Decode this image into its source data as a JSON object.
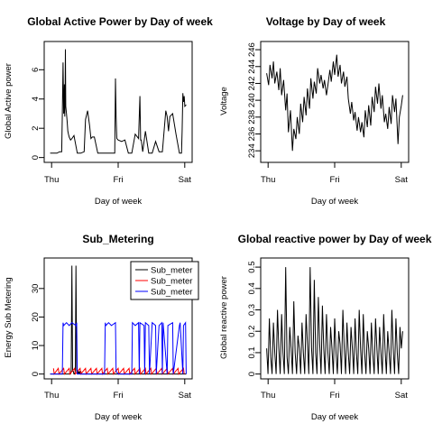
{
  "chart_data": [
    {
      "type": "line",
      "title": "Global Active Power by Day of week",
      "xlabel": "Day of week",
      "ylabel": "Global Active power",
      "x_ticks": [
        "Thu",
        "Fri",
        "Sat"
      ],
      "y_ticks": [
        0,
        2,
        4,
        6
      ],
      "xlim": [
        0,
        2
      ],
      "ylim": [
        0,
        7.6
      ],
      "series": [
        {
          "x": [
            0.0,
            0.1,
            0.14,
            0.17,
            0.18,
            0.19,
            0.2,
            0.205,
            0.21,
            0.215,
            0.22,
            0.225,
            0.23,
            0.24,
            0.25,
            0.26,
            0.27,
            0.28,
            0.3,
            0.32,
            0.35,
            0.4,
            0.45,
            0.5,
            0.52,
            0.55,
            0.58,
            0.6,
            0.62,
            0.65,
            0.7,
            0.8,
            0.9,
            0.95,
            0.96,
            0.97,
            0.98,
            1.0,
            1.05,
            1.1,
            1.15,
            1.2,
            1.25,
            1.3,
            1.32,
            1.33,
            1.34,
            1.36,
            1.4,
            1.45,
            1.5,
            1.55,
            1.6,
            1.65,
            1.7,
            1.72,
            1.74,
            1.76,
            1.8,
            1.85,
            1.9,
            1.93,
            1.94,
            1.95,
            1.96,
            1.97,
            1.98,
            2.0
          ],
          "y": [
            0.3,
            0.3,
            0.4,
            0.4,
            3.0,
            6.5,
            3.0,
            3.2,
            5.0,
            2.8,
            4.2,
            7.4,
            3.5,
            3.0,
            2.5,
            1.8,
            1.6,
            1.4,
            1.2,
            1.3,
            1.5,
            0.3,
            0.3,
            0.4,
            2.6,
            3.2,
            2.2,
            1.3,
            1.4,
            1.4,
            0.3,
            0.3,
            0.3,
            0.3,
            5.4,
            2.8,
            1.3,
            1.2,
            1.1,
            1.2,
            0.3,
            0.3,
            1.6,
            1.3,
            4.2,
            1.2,
            1.2,
            0.4,
            1.8,
            0.3,
            0.3,
            1.1,
            0.4,
            0.4,
            3.2,
            2.8,
            1.8,
            2.8,
            3.0,
            1.6,
            0.3,
            0.3,
            1.8,
            4.4,
            3.8,
            4.2,
            3.5,
            3.6
          ]
        }
      ]
    },
    {
      "type": "line",
      "title": "Voltage by Day of week",
      "xlabel": "Day of week",
      "ylabel": "Voltage",
      "x_ticks": [
        "Thu",
        "Fri",
        "Sat"
      ],
      "y_ticks": [
        234,
        236,
        238,
        240,
        242,
        244,
        246
      ],
      "xlim": [
        0,
        2
      ],
      "ylim": [
        233.2,
        246.4
      ],
      "series": [
        {
          "x": [
            0.0,
            0.03,
            0.05,
            0.08,
            0.1,
            0.12,
            0.15,
            0.18,
            0.2,
            0.22,
            0.25,
            0.28,
            0.3,
            0.32,
            0.35,
            0.38,
            0.4,
            0.43,
            0.45,
            0.48,
            0.5,
            0.53,
            0.55,
            0.58,
            0.6,
            0.63,
            0.65,
            0.68,
            0.7,
            0.73,
            0.75,
            0.78,
            0.8,
            0.83,
            0.85,
            0.88,
            0.9,
            0.93,
            0.95,
            0.98,
            1.0,
            1.03,
            1.05,
            1.08,
            1.1,
            1.13,
            1.15,
            1.18,
            1.2,
            1.23,
            1.25,
            1.28,
            1.3,
            1.33,
            1.35,
            1.38,
            1.4,
            1.43,
            1.45,
            1.48,
            1.5,
            1.53,
            1.55,
            1.58,
            1.6,
            1.63,
            1.65,
            1.68,
            1.7,
            1.73,
            1.75,
            1.78,
            1.8,
            1.83,
            1.85,
            1.88,
            1.9,
            1.93,
            1.95,
            1.98,
            2.0
          ],
          "y": [
            243.2,
            241.8,
            244.2,
            242.6,
            244.6,
            242.0,
            243.4,
            241.2,
            243.8,
            240.6,
            242.4,
            238.8,
            240.8,
            236.2,
            238.8,
            234.0,
            236.6,
            235.4,
            238.0,
            236.0,
            239.6,
            237.4,
            240.4,
            238.2,
            241.4,
            239.0,
            242.6,
            240.2,
            242.2,
            240.8,
            243.8,
            242.0,
            243.0,
            241.4,
            242.4,
            240.6,
            241.8,
            243.6,
            242.2,
            244.6,
            243.0,
            245.4,
            242.8,
            244.2,
            242.0,
            243.4,
            241.6,
            242.8,
            240.2,
            238.4,
            239.8,
            237.6,
            238.6,
            236.4,
            238.0,
            236.2,
            237.4,
            235.6,
            238.8,
            236.8,
            239.4,
            237.0,
            240.4,
            238.6,
            241.6,
            239.6,
            242.0,
            239.0,
            240.6,
            237.4,
            238.4,
            236.6,
            239.2,
            237.2,
            240.6,
            238.6,
            240.2,
            234.8,
            238.0,
            239.4,
            240.6
          ]
        }
      ]
    },
    {
      "type": "line",
      "title": "Sub_Metering",
      "xlabel": "Day of week",
      "ylabel": "Energy Sub Metering",
      "x_ticks": [
        "Thu",
        "Fri",
        "Sat"
      ],
      "y_ticks": [
        0,
        10,
        20,
        30
      ],
      "xlim": [
        0,
        2
      ],
      "ylim": [
        0,
        39
      ],
      "legend": {
        "position": "top-right",
        "entries": [
          "Sub_meter",
          "Sub_meter",
          "Sub_meter"
        ]
      },
      "series": [
        {
          "name": "Sub_meter",
          "color": "#000000",
          "x": [
            0.0,
            0.28,
            0.29,
            0.3,
            0.31,
            0.32,
            0.33,
            0.34,
            0.35,
            0.36,
            0.37,
            0.38,
            0.39,
            0.4,
            0.41,
            0.42,
            0.43,
            0.44,
            0.45,
            0.46,
            2.0
          ],
          "y": [
            0,
            0,
            0,
            0,
            1,
            38,
            1,
            1,
            0,
            0,
            1,
            38,
            1,
            0,
            1,
            0,
            1,
            0,
            1,
            0,
            0
          ]
        },
        {
          "name": "Sub_meter",
          "color": "#ff0000",
          "x": [
            0.05,
            0.06,
            0.12,
            0.13,
            0.2,
            0.21,
            0.28,
            0.29,
            0.36,
            0.37,
            0.44,
            0.45,
            0.52,
            0.53,
            0.6,
            0.61,
            0.68,
            0.69,
            0.76,
            0.77,
            0.84,
            0.85,
            0.92,
            0.93,
            1.0,
            1.01,
            1.08,
            1.09,
            1.16,
            1.17,
            1.24,
            1.25,
            1.32,
            1.33,
            1.4,
            1.41,
            1.48,
            1.49,
            1.56,
            1.57,
            1.64,
            1.65,
            1.72,
            1.73,
            1.8,
            1.81,
            1.88,
            1.89,
            1.96,
            1.97
          ],
          "y": [
            2,
            0,
            2,
            0,
            2,
            0,
            2,
            0,
            2,
            0,
            2,
            0,
            2,
            0,
            2,
            0,
            2,
            0,
            2,
            0,
            2,
            0,
            2,
            0,
            2,
            0,
            2,
            0,
            2,
            0,
            2,
            0,
            2,
            0,
            2,
            0,
            2,
            0,
            2,
            0,
            2,
            0,
            2,
            0,
            2,
            0,
            2,
            0,
            2,
            0
          ]
        },
        {
          "name": "Sub_meter",
          "color": "#0000ff",
          "x": [
            0.0,
            0.18,
            0.19,
            0.2,
            0.24,
            0.28,
            0.32,
            0.38,
            0.39,
            0.4,
            0.8,
            0.81,
            0.82,
            0.86,
            0.9,
            0.96,
            0.97,
            1.0,
            1.2,
            1.21,
            1.25,
            1.3,
            1.31,
            1.32,
            1.38,
            1.39,
            1.4,
            1.45,
            1.46,
            1.5,
            1.55,
            1.56,
            1.6,
            1.64,
            1.65,
            1.66,
            1.72,
            1.73,
            1.8,
            1.81,
            1.9,
            1.91,
            1.95,
            1.96,
            1.99,
            2.0
          ],
          "y": [
            0,
            0,
            18,
            17,
            18,
            17,
            18,
            17,
            18,
            0,
            0,
            18,
            17,
            18,
            17,
            18,
            1,
            0,
            0,
            18,
            17,
            18,
            0,
            18,
            17,
            0,
            18,
            17,
            0,
            18,
            17,
            0,
            17,
            18,
            0,
            18,
            0,
            17,
            18,
            0,
            17,
            18,
            0,
            17,
            18,
            0
          ]
        }
      ]
    },
    {
      "type": "line",
      "title": "Global reactive power by Day of week",
      "xlabel": "Day of week",
      "ylabel": "Global reactive power",
      "x_ticks": [
        "Thu",
        "Fri",
        "Sat"
      ],
      "y_ticks": [
        0.0,
        0.1,
        0.2,
        0.3,
        0.4,
        0.5
      ],
      "xlim": [
        0,
        2
      ],
      "ylim": [
        0,
        0.52
      ],
      "series": [
        {
          "x": [
            0.0,
            0.02,
            0.04,
            0.06,
            0.08,
            0.1,
            0.12,
            0.14,
            0.16,
            0.18,
            0.2,
            0.22,
            0.24,
            0.26,
            0.28,
            0.3,
            0.32,
            0.34,
            0.36,
            0.38,
            0.4,
            0.42,
            0.44,
            0.46,
            0.48,
            0.5,
            0.52,
            0.54,
            0.56,
            0.58,
            0.6,
            0.62,
            0.64,
            0.66,
            0.68,
            0.7,
            0.72,
            0.74,
            0.76,
            0.78,
            0.8,
            0.82,
            0.84,
            0.86,
            0.88,
            0.9,
            0.92,
            0.94,
            0.96,
            0.98,
            1.0,
            1.02,
            1.04,
            1.06,
            1.08,
            1.1,
            1.12,
            1.14,
            1.16,
            1.18,
            1.2,
            1.22,
            1.24,
            1.26,
            1.28,
            1.3,
            1.32,
            1.34,
            1.36,
            1.38,
            1.4,
            1.42,
            1.44,
            1.46,
            1.48,
            1.5,
            1.52,
            1.54,
            1.56,
            1.58,
            1.6,
            1.62,
            1.64,
            1.66,
            1.68,
            1.7,
            1.72,
            1.74,
            1.76,
            1.78,
            1.8,
            1.82,
            1.84,
            1.86,
            1.88,
            1.9,
            1.92,
            1.94,
            1.96,
            1.98,
            2.0
          ],
          "y": [
            0.12,
            0.0,
            0.26,
            0.08,
            0.0,
            0.24,
            0.1,
            0.0,
            0.3,
            0.12,
            0.0,
            0.28,
            0.1,
            0.0,
            0.5,
            0.08,
            0.0,
            0.22,
            0.12,
            0.0,
            0.34,
            0.1,
            0.0,
            0.18,
            0.12,
            0.0,
            0.24,
            0.1,
            0.0,
            0.28,
            0.14,
            0.0,
            0.5,
            0.12,
            0.0,
            0.44,
            0.1,
            0.0,
            0.36,
            0.14,
            0.0,
            0.32,
            0.12,
            0.0,
            0.28,
            0.1,
            0.0,
            0.22,
            0.12,
            0.0,
            0.26,
            0.1,
            0.0,
            0.2,
            0.14,
            0.0,
            0.3,
            0.12,
            0.0,
            0.24,
            0.1,
            0.0,
            0.22,
            0.12,
            0.0,
            0.26,
            0.1,
            0.0,
            0.3,
            0.12,
            0.0,
            0.28,
            0.1,
            0.0,
            0.2,
            0.12,
            0.0,
            0.24,
            0.1,
            0.0,
            0.26,
            0.12,
            0.0,
            0.22,
            0.1,
            0.0,
            0.28,
            0.12,
            0.0,
            0.2,
            0.1,
            0.0,
            0.3,
            0.12,
            0.0,
            0.26,
            0.1,
            0.0,
            0.22,
            0.12,
            0.2
          ]
        }
      ]
    }
  ]
}
